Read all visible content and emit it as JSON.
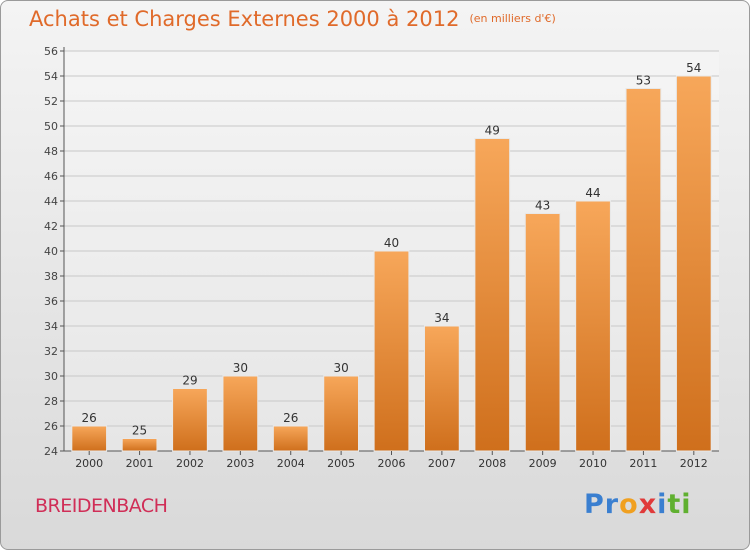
{
  "header": {
    "title": "Achats et Charges Externes 2000 à 2012",
    "subtitle": "(en milliers d'€)"
  },
  "footer": {
    "commune": "BREIDENBACH",
    "logo_letters": [
      {
        "ch": "P",
        "color": "#3a7fd0"
      },
      {
        "ch": "r",
        "color": "#3a7fd0"
      },
      {
        "ch": "o",
        "color": "#f0a020"
      },
      {
        "ch": "x",
        "color": "#e03a3a"
      },
      {
        "ch": "i",
        "color": "#3a7fd0"
      },
      {
        "ch": "t",
        "color": "#60b030"
      },
      {
        "ch": "i",
        "color": "#60b030"
      }
    ]
  },
  "colors": {
    "bar_top": "#f7a75a",
    "bar_bottom": "#cf6f1c",
    "title": "#e06a2a",
    "commune": "#d02e57",
    "grid": "#c8c8c8"
  },
  "chart_data": {
    "type": "bar",
    "categories": [
      "2000",
      "2001",
      "2002",
      "2003",
      "2004",
      "2005",
      "2006",
      "2007",
      "2008",
      "2009",
      "2010",
      "2011",
      "2012"
    ],
    "values": [
      26,
      25,
      29,
      30,
      26,
      30,
      40,
      34,
      49,
      43,
      44,
      53,
      54
    ],
    "title": "Achats et Charges Externes 2000 à 2012",
    "subtitle": "(en milliers d'€)",
    "ylim": [
      24,
      56
    ],
    "yticks": [
      24,
      26,
      28,
      30,
      32,
      34,
      36,
      38,
      40,
      42,
      44,
      46,
      48,
      50,
      52,
      54,
      56
    ],
    "grid": true
  }
}
